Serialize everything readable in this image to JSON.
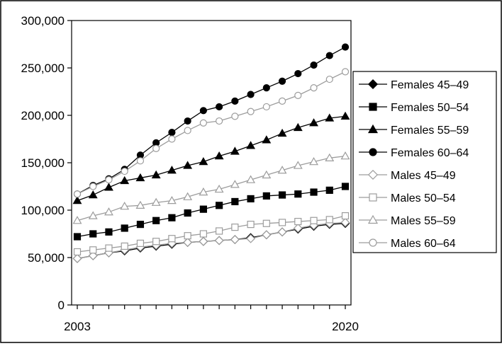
{
  "chart_data": {
    "type": "line",
    "title": "",
    "xlabel": "",
    "ylabel": "",
    "x": [
      2003,
      2004,
      2005,
      2006,
      2007,
      2008,
      2009,
      2010,
      2011,
      2012,
      2013,
      2014,
      2015,
      2016,
      2017,
      2018,
      2019,
      2020
    ],
    "x_tick_labels": [
      "2003",
      "2020"
    ],
    "ylim": [
      0,
      300000
    ],
    "y_ticks": [
      0,
      50000,
      100000,
      150000,
      200000,
      250000,
      300000
    ],
    "y_tick_labels": [
      "0",
      "50,000",
      "100,000",
      "150,000",
      "200,000",
      "250,000",
      "300,000"
    ],
    "grid": false,
    "legend_position": "right",
    "series": [
      {
        "name": "Females 45–49",
        "color": "#000000",
        "marker": "diamond",
        "filled": true,
        "values": [
          49000,
          52000,
          55000,
          57000,
          60000,
          62000,
          64000,
          66000,
          67000,
          68000,
          69000,
          71000,
          74000,
          77000,
          80000,
          83000,
          85000,
          86000
        ]
      },
      {
        "name": "Females 50–54",
        "color": "#000000",
        "marker": "square",
        "filled": true,
        "values": [
          72000,
          75000,
          77000,
          81000,
          85000,
          89000,
          92000,
          97000,
          101000,
          105000,
          109000,
          112000,
          115000,
          116000,
          117000,
          119000,
          121000,
          125000
        ]
      },
      {
        "name": "Females 55–59",
        "color": "#000000",
        "marker": "triangle",
        "filled": true,
        "values": [
          110000,
          116000,
          124000,
          131000,
          134000,
          137000,
          142000,
          147000,
          151000,
          157000,
          162000,
          168000,
          174000,
          181000,
          187000,
          192000,
          197000,
          199000
        ]
      },
      {
        "name": "Females 60–64",
        "color": "#000000",
        "marker": "circle",
        "filled": true,
        "values": [
          117000,
          126000,
          133000,
          143000,
          158000,
          171000,
          182000,
          194000,
          205000,
          209000,
          215000,
          222000,
          229000,
          236000,
          244000,
          253000,
          263000,
          272000
        ]
      },
      {
        "name": "Males 45–49",
        "color": "#9c9c9c",
        "marker": "diamond",
        "filled": false,
        "values": [
          49000,
          52000,
          55000,
          58000,
          61000,
          63000,
          65000,
          66000,
          67000,
          68000,
          69000,
          70000,
          74000,
          77000,
          81000,
          84000,
          86000,
          87000
        ]
      },
      {
        "name": "Males 50–54",
        "color": "#9c9c9c",
        "marker": "square",
        "filled": false,
        "values": [
          56000,
          58000,
          60000,
          62000,
          65000,
          67000,
          70000,
          73000,
          75000,
          78000,
          82000,
          85000,
          86000,
          87000,
          88000,
          89000,
          90000,
          94000
        ]
      },
      {
        "name": "Males 55–59",
        "color": "#9c9c9c",
        "marker": "triangle",
        "filled": false,
        "values": [
          89000,
          94000,
          98000,
          104000,
          105000,
          108000,
          110000,
          114000,
          119000,
          122000,
          127000,
          132000,
          137000,
          142000,
          147000,
          151000,
          155000,
          157000
        ]
      },
      {
        "name": "Males 60–64",
        "color": "#9c9c9c",
        "marker": "circle",
        "filled": false,
        "values": [
          117000,
          125000,
          132000,
          141000,
          152000,
          165000,
          175000,
          184000,
          192000,
          194000,
          199000,
          204000,
          209000,
          215000,
          221000,
          229000,
          238000,
          246000
        ]
      }
    ]
  }
}
